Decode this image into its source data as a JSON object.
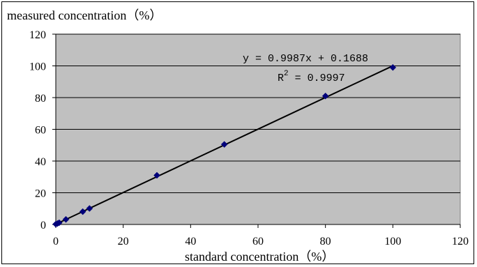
{
  "chart_data": {
    "type": "scatter",
    "ylabel": "measured concentration（%）",
    "xlabel": "standard concentration（%）",
    "xlim": [
      0,
      120
    ],
    "ylim": [
      0,
      120
    ],
    "x_ticks": [
      0,
      20,
      40,
      60,
      80,
      100,
      120
    ],
    "y_ticks": [
      0,
      20,
      40,
      60,
      80,
      100,
      120
    ],
    "grid": "horizontal",
    "points": [
      {
        "x": 0,
        "y": 0.2
      },
      {
        "x": 0.5,
        "y": 0.6
      },
      {
        "x": 1,
        "y": 1.1
      },
      {
        "x": 3,
        "y": 3.2
      },
      {
        "x": 8,
        "y": 8.1
      },
      {
        "x": 10,
        "y": 10.1
      },
      {
        "x": 30,
        "y": 31
      },
      {
        "x": 50,
        "y": 50.5
      },
      {
        "x": 80,
        "y": 81
      },
      {
        "x": 100,
        "y": 99
      }
    ],
    "trendline": {
      "slope": 0.9987,
      "intercept": 0.1688,
      "equation": "y = 0.9987x + 0.1688",
      "r2_label": "R",
      "r2_sup": "2",
      "r2_value": " = 0.9997"
    },
    "colors": {
      "plot_background": "#c0c0c0",
      "marker": "#00007a",
      "trendline": "#000000",
      "gridline": "#000000"
    }
  }
}
